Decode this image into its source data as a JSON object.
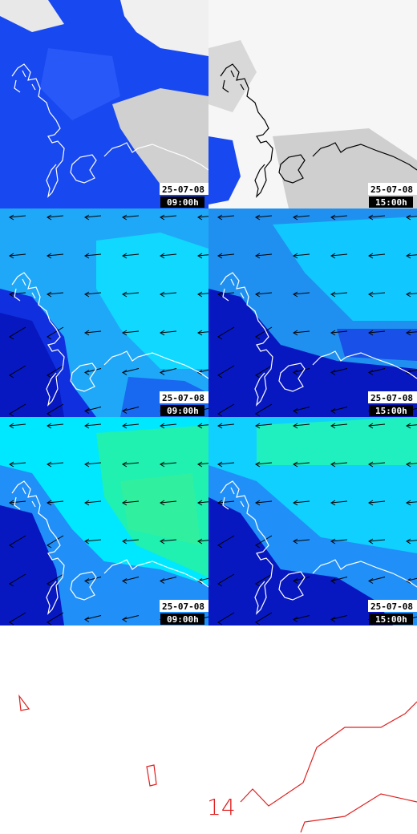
{
  "panels": [
    {
      "date": "25-07-08",
      "time": "09:00h"
    },
    {
      "date": "25-07-08",
      "time": "15:00h"
    },
    {
      "date": "25-07-08",
      "time": "09:00h"
    },
    {
      "date": "25-07-08",
      "time": "15:00h"
    },
    {
      "date": "25-07-08",
      "time": "09:00h"
    },
    {
      "date": "25-07-08",
      "time": "15:00h"
    }
  ],
  "contour_label": "14"
}
